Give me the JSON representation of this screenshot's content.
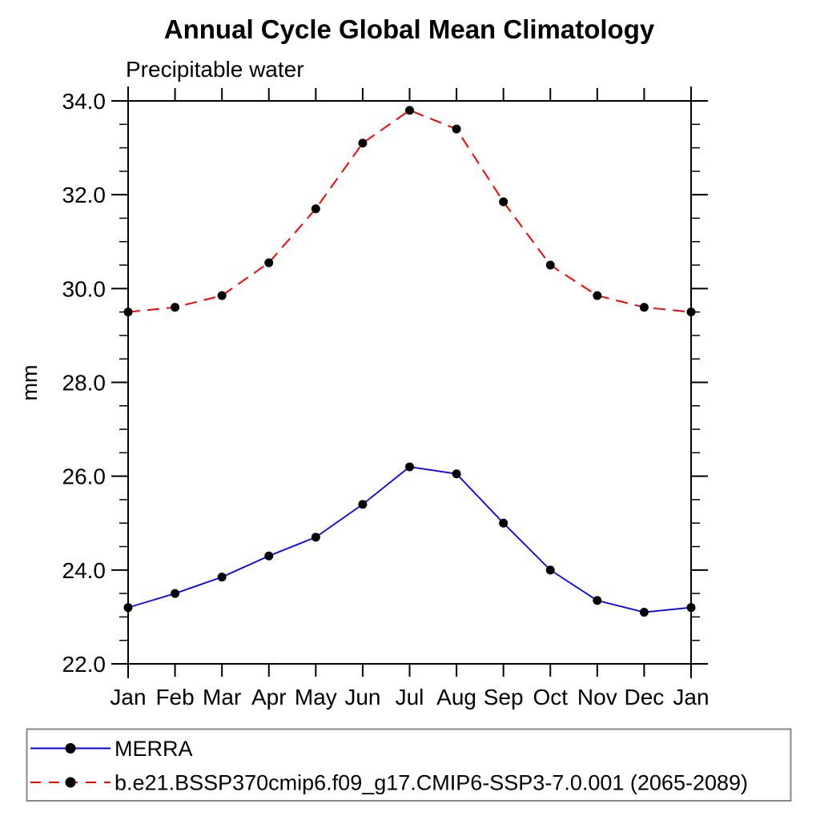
{
  "header": {
    "title": "Annual Cycle Global Mean Climatology",
    "subtitle": "Precipitable water"
  },
  "chart_data": {
    "type": "line",
    "title": "Annual Cycle Global Mean Climatology",
    "subtitle": "Precipitable water",
    "xlabel": "",
    "ylabel": "mm",
    "categories": [
      "Jan",
      "Feb",
      "Mar",
      "Apr",
      "May",
      "Jun",
      "Jul",
      "Aug",
      "Sep",
      "Oct",
      "Nov",
      "Dec",
      "Jan"
    ],
    "ylim": [
      22.0,
      34.0
    ],
    "ytick_interval": 2.0,
    "yminor_interval": 0.5,
    "ytick_labels": [
      "22.0",
      "24.0",
      "26.0",
      "28.0",
      "30.0",
      "32.0",
      "34.0"
    ],
    "grid": false,
    "legend_position": "bottom-outside-box",
    "series": [
      {
        "name": "MERRA",
        "color": "#0000ff",
        "line_style": "solid",
        "marker": "filled-circle",
        "marker_color": "#000000",
        "values": [
          23.2,
          23.5,
          23.85,
          24.3,
          24.7,
          25.4,
          26.2,
          26.05,
          25.0,
          24.0,
          23.35,
          23.1,
          23.2
        ]
      },
      {
        "name": "b.e21.BSSP370cmip6.f09_g17.CMIP6-SSP3-7.0.001 (2065-2089)",
        "color": "#ff0000",
        "line_style": "dashed",
        "marker": "filled-circle",
        "marker_color": "#000000",
        "values": [
          29.5,
          29.6,
          29.85,
          30.55,
          31.7,
          33.1,
          33.8,
          33.4,
          31.85,
          30.5,
          29.85,
          29.6,
          29.5
        ]
      }
    ],
    "colors": {
      "axis": "#000000",
      "background": "#ffffff",
      "legend_border": "#888888",
      "marker": "#000000"
    }
  }
}
